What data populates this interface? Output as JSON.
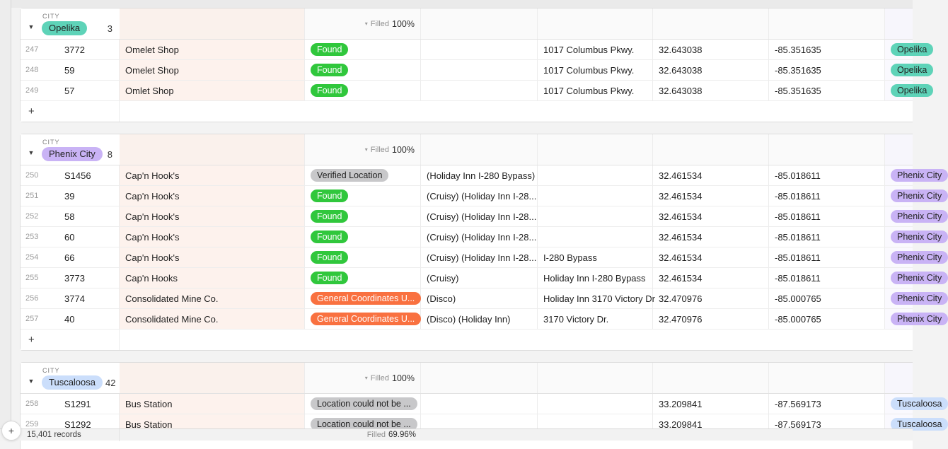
{
  "table": {
    "field_label": "CITY",
    "summary_label": "Filled",
    "collapse_icon": "▼",
    "summary_caret": "▾",
    "add_row_icon": "+",
    "fab_icon": "+"
  },
  "status_styles": {
    "found": {
      "label": "Found",
      "bg": "#30c73c",
      "fg": "#ffffff"
    },
    "verified": {
      "label": "Verified Location",
      "bg": "#c8c8ca",
      "fg": "#1f1f1f"
    },
    "general": {
      "label": "General Coordinates U...",
      "bg": "#f97140",
      "fg": "#ffffff"
    },
    "not_found": {
      "label": "Location could not be ...",
      "bg": "#c8c8ca",
      "fg": "#1f1f1f"
    }
  },
  "groups": [
    {
      "city": "Opelika",
      "count": "3",
      "badge_bg": "#5ed3b8",
      "summary": "100%",
      "has_add_row": true,
      "rows": [
        {
          "num": "247",
          "id": "3772",
          "name": "Omelet Shop",
          "status": "found",
          "notes": "",
          "address": "1017 Columbus Pkwy.",
          "lat": "32.643038",
          "lng": "-85.351635",
          "city": "Opelika"
        },
        {
          "num": "248",
          "id": "59",
          "name": "Omelet Shop",
          "status": "found",
          "notes": "",
          "address": "1017 Columbus Pkwy.",
          "lat": "32.643038",
          "lng": "-85.351635",
          "city": "Opelika"
        },
        {
          "num": "249",
          "id": "57",
          "name": "Omlet Shop",
          "status": "found",
          "notes": "",
          "address": "1017 Columbus Pkwy.",
          "lat": "32.643038",
          "lng": "-85.351635",
          "city": "Opelika"
        }
      ]
    },
    {
      "city": "Phenix City",
      "count": "8",
      "badge_bg": "#c9b3f5",
      "summary": "100%",
      "has_add_row": true,
      "rows": [
        {
          "num": "250",
          "id": "S1456",
          "name": "Cap'n Hook's",
          "status": "verified",
          "notes": "(Holiday Inn I-280 Bypass)",
          "address": "",
          "lat": "32.461534",
          "lng": "-85.018611",
          "city": "Phenix City"
        },
        {
          "num": "251",
          "id": "39",
          "name": "Cap'n Hook's",
          "status": "found",
          "notes": "(Cruisy) (Holiday Inn I-28...",
          "address": "",
          "lat": "32.461534",
          "lng": "-85.018611",
          "city": "Phenix City"
        },
        {
          "num": "252",
          "id": "58",
          "name": "Cap'n Hook's",
          "status": "found",
          "notes": "(Cruisy) (Holiday Inn I-28...",
          "address": "",
          "lat": "32.461534",
          "lng": "-85.018611",
          "city": "Phenix City"
        },
        {
          "num": "253",
          "id": "60",
          "name": "Cap'n Hook's",
          "status": "found",
          "notes": "(Cruisy) (Holiday Inn I-28...",
          "address": "",
          "lat": "32.461534",
          "lng": "-85.018611",
          "city": "Phenix City"
        },
        {
          "num": "254",
          "id": "66",
          "name": "Cap'n Hook's",
          "status": "found",
          "notes": "(Cruisy) (Holiday Inn I-28...",
          "address": "I-280 Bypass",
          "lat": "32.461534",
          "lng": "-85.018611",
          "city": "Phenix City"
        },
        {
          "num": "255",
          "id": "3773",
          "name": "Cap'n Hooks",
          "status": "found",
          "notes": "(Cruisy)",
          "address": "Holiday Inn I-280 Bypass",
          "lat": "32.461534",
          "lng": "-85.018611",
          "city": "Phenix City"
        },
        {
          "num": "256",
          "id": "3774",
          "name": "Consolidated Mine Co.",
          "status": "general",
          "notes": "(Disco)",
          "address": "Holiday Inn 3170 Victory Dr",
          "lat": "32.470976",
          "lng": "-85.000765",
          "city": "Phenix City"
        },
        {
          "num": "257",
          "id": "40",
          "name": "Consolidated Mine Co.",
          "status": "general",
          "notes": "(Disco) (Holiday Inn)",
          "address": "3170 Victory Dr.",
          "lat": "32.470976",
          "lng": "-85.000765",
          "city": "Phenix City"
        }
      ]
    },
    {
      "city": "Tuscaloosa",
      "count": "42",
      "badge_bg": "#cbdefb",
      "summary": "100%",
      "has_add_row": false,
      "rows": [
        {
          "num": "258",
          "id": "S1291",
          "name": "Bus Station",
          "status": "not_found",
          "notes": "",
          "address": "",
          "lat": "33.209841",
          "lng": "-87.569173",
          "city": "Tuscaloosa"
        },
        {
          "num": "259",
          "id": "S1292",
          "name": "Bus Station",
          "status": "not_found",
          "notes": "",
          "address": "",
          "lat": "33.209841",
          "lng": "-87.569173",
          "city": "Tuscaloosa"
        }
      ]
    }
  ],
  "footer": {
    "records": "15,401 records",
    "filled_label": "Filled",
    "filled_value": "69.96%"
  }
}
